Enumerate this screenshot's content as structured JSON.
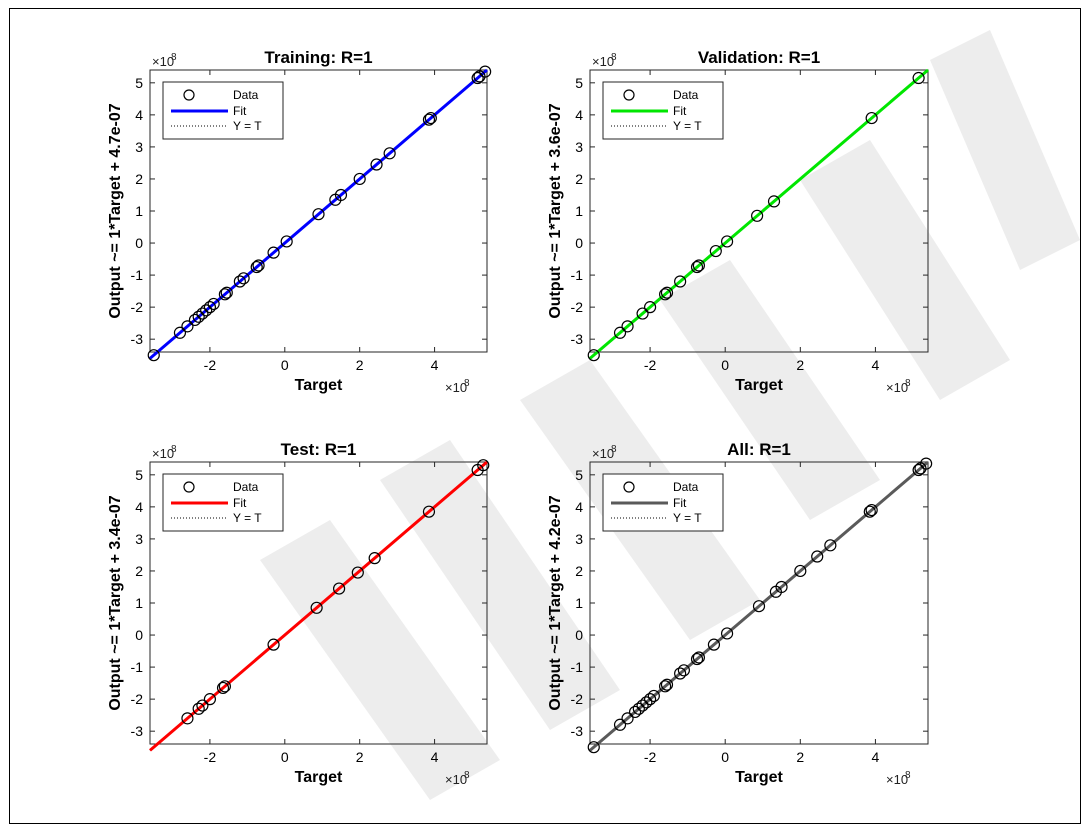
{
  "exponent_label": "×10",
  "exponent_value": "8",
  "chart_data": [
    {
      "type": "scatter",
      "title": "Training: R=1",
      "xlabel": "Target",
      "ylabel": "Output ~= 1*Target + 4.7e-07",
      "xlim": [
        -3.6,
        5.4
      ],
      "ylim": [
        -3.4,
        5.4
      ],
      "xticks": [
        -2,
        0,
        2,
        4
      ],
      "yticks": [
        -3,
        -2,
        -1,
        0,
        1,
        2,
        3,
        4,
        5
      ],
      "fit_color": "#0000ff",
      "legend": [
        "Data",
        "Fit",
        "Y = T"
      ],
      "legend_position": "top-left",
      "x": [
        -3.5,
        -2.8,
        -2.6,
        -2.4,
        -2.3,
        -2.2,
        -2.1,
        -2.0,
        -1.9,
        -1.6,
        -1.55,
        -1.2,
        -1.1,
        -0.75,
        -0.7,
        -0.3,
        0.05,
        0.9,
        1.35,
        1.5,
        2.0,
        2.45,
        2.8,
        3.85,
        3.9,
        5.15,
        5.2,
        5.35
      ],
      "y": [
        -3.5,
        -2.8,
        -2.6,
        -2.4,
        -2.3,
        -2.2,
        -2.1,
        -2.0,
        -1.9,
        -1.6,
        -1.55,
        -1.2,
        -1.1,
        -0.75,
        -0.7,
        -0.3,
        0.05,
        0.9,
        1.35,
        1.5,
        2.0,
        2.45,
        2.8,
        3.85,
        3.9,
        5.15,
        5.2,
        5.35
      ]
    },
    {
      "type": "scatter",
      "title": "Validation: R=1",
      "xlabel": "Target",
      "ylabel": "Output ~= 1*Target + 3.6e-07",
      "xlim": [
        -3.6,
        5.4
      ],
      "ylim": [
        -3.4,
        5.4
      ],
      "xticks": [
        -2,
        0,
        2,
        4
      ],
      "yticks": [
        -3,
        -2,
        -1,
        0,
        1,
        2,
        3,
        4,
        5
      ],
      "fit_color": "#00e600",
      "legend": [
        "Data",
        "Fit",
        "Y = T"
      ],
      "legend_position": "top-left",
      "x": [
        -3.5,
        -2.8,
        -2.6,
        -2.2,
        -2.0,
        -1.6,
        -1.55,
        -1.2,
        -0.75,
        -0.7,
        -0.25,
        0.05,
        0.85,
        1.3,
        3.9,
        5.15
      ],
      "y": [
        -3.5,
        -2.8,
        -2.6,
        -2.2,
        -2.0,
        -1.6,
        -1.55,
        -1.2,
        -0.75,
        -0.7,
        -0.25,
        0.05,
        0.85,
        1.3,
        3.9,
        5.15
      ]
    },
    {
      "type": "scatter",
      "title": "Test: R=1",
      "xlabel": "Target",
      "ylabel": "Output ~= 1*Target + 3.4e-07",
      "xlim": [
        -3.6,
        5.4
      ],
      "ylim": [
        -3.4,
        5.4
      ],
      "xticks": [
        -2,
        0,
        2,
        4
      ],
      "yticks": [
        -3,
        -2,
        -1,
        0,
        1,
        2,
        3,
        4,
        5
      ],
      "fit_color": "#ff0000",
      "legend": [
        "Data",
        "Fit",
        "Y = T"
      ],
      "legend_position": "top-left",
      "x": [
        -2.6,
        -2.3,
        -2.2,
        -2.0,
        -1.65,
        -1.6,
        -0.3,
        0.85,
        1.45,
        1.95,
        2.4,
        3.85,
        5.15,
        5.3
      ],
      "y": [
        -2.6,
        -2.3,
        -2.2,
        -2.0,
        -1.65,
        -1.6,
        -0.3,
        0.85,
        1.45,
        1.95,
        2.4,
        3.85,
        5.15,
        5.3
      ]
    },
    {
      "type": "scatter",
      "title": "All: R=1",
      "xlabel": "Target",
      "ylabel": "Output ~= 1*Target + 4.2e-07",
      "xlim": [
        -3.6,
        5.4
      ],
      "ylim": [
        -3.4,
        5.4
      ],
      "xticks": [
        -2,
        0,
        2,
        4
      ],
      "yticks": [
        -3,
        -2,
        -1,
        0,
        1,
        2,
        3,
        4,
        5
      ],
      "fit_color": "#5a5a5a",
      "legend": [
        "Data",
        "Fit",
        "Y = T"
      ],
      "legend_position": "top-left",
      "x": [
        -3.5,
        -2.8,
        -2.6,
        -2.4,
        -2.3,
        -2.2,
        -2.1,
        -2.0,
        -1.9,
        -1.6,
        -1.55,
        -1.2,
        -1.1,
        -0.75,
        -0.7,
        -0.3,
        0.05,
        0.9,
        1.35,
        1.5,
        2.0,
        2.45,
        2.8,
        3.85,
        3.9,
        5.15,
        5.2,
        5.35
      ],
      "y": [
        -3.5,
        -2.8,
        -2.6,
        -2.4,
        -2.3,
        -2.2,
        -2.1,
        -2.0,
        -1.9,
        -1.6,
        -1.55,
        -1.2,
        -1.1,
        -0.75,
        -0.7,
        -0.3,
        0.05,
        0.9,
        1.35,
        1.5,
        2.0,
        2.45,
        2.8,
        3.85,
        3.9,
        5.15,
        5.2,
        5.35
      ]
    }
  ]
}
